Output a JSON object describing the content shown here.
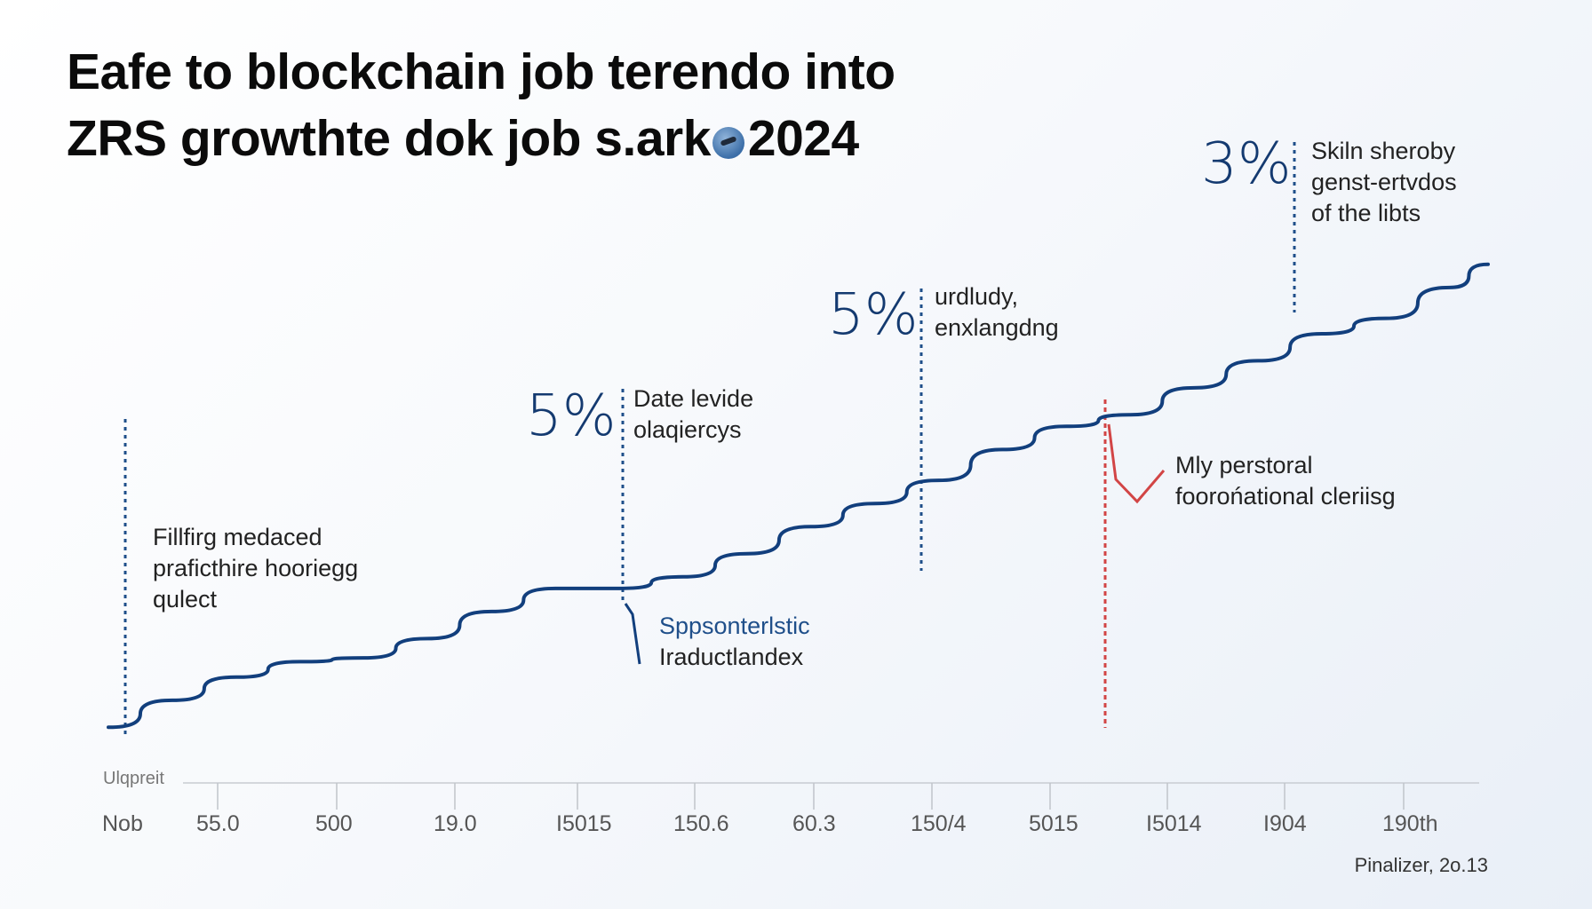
{
  "title_lines": [
    "Eafe to blockchain job terendo into",
    "ZRS growthte dok job s.ark",
    "2024"
  ],
  "colors": {
    "line": "#123f7d",
    "dotted": "#1f4f8a",
    "accent_red": "#d24545",
    "text_blue": "#143a70"
  },
  "callouts": [
    {
      "pct": "",
      "lines": [
        "Fillfirg medaced",
        "praficthire hooriegg",
        "qulect"
      ]
    },
    {
      "pct": "5%",
      "lines": [
        "Date levide",
        "olaqiercys"
      ]
    },
    {
      "pct": "",
      "lines": [
        "Sppsonterlstic",
        "Iraductlandex"
      ]
    },
    {
      "pct": "5%",
      "lines": [
        "urdludy,",
        "enxlangdng"
      ]
    },
    {
      "pct": "",
      "lines": [
        "Mly perstoral",
        "foorońational cleriisg"
      ]
    },
    {
      "pct": "3%",
      "lines": [
        "Skiln sheroby",
        "genst-ertvdos",
        "of the libts"
      ]
    }
  ],
  "unit_label": "Ulqpreit",
  "footer": "Pinalizer, 2o.13",
  "chart_data": {
    "type": "line",
    "title": "Eafe to blockchain job terendo into ZRS growthte dok job s.ark 2024",
    "xlabel": "",
    "ylabel": "Ulqpreit",
    "grid": false,
    "x_tick_labels": [
      "Nob",
      "55.0",
      "500",
      "19.0",
      "I5015",
      "150.6",
      "60.3",
      "150/4",
      "5015",
      "I5014",
      "I904",
      "190th"
    ],
    "x": [
      0,
      0.5,
      1,
      1.5,
      2,
      2.5,
      3,
      3.5,
      4,
      4.5,
      5,
      5.5,
      6,
      6.5,
      7,
      7.5,
      8,
      8.5,
      9,
      9.5,
      10,
      10.5,
      10.8
    ],
    "values": [
      2,
      9,
      15,
      19,
      20,
      25,
      32,
      38,
      38,
      41,
      47,
      54,
      60,
      66,
      74,
      80,
      83,
      90,
      97,
      104,
      108,
      116,
      122
    ],
    "ylim": [
      0,
      130
    ],
    "annotations": [
      {
        "x": 0.1,
        "label": "Fillfirg medaced praficthire hooriegg qulect"
      },
      {
        "x": 3.5,
        "label": "5% Date levide olaqiercys"
      },
      {
        "x": 3.5,
        "label": "Sppsonterlstic Iraductlandex"
      },
      {
        "x": 6.0,
        "label": "5% urdludy, enxlangdng"
      },
      {
        "x": 7.5,
        "label": "Mly perstoral foorońational cleriisg"
      },
      {
        "x": 9.5,
        "label": "3% Skiln sheroby genst-ertvdos of the libts"
      }
    ]
  }
}
